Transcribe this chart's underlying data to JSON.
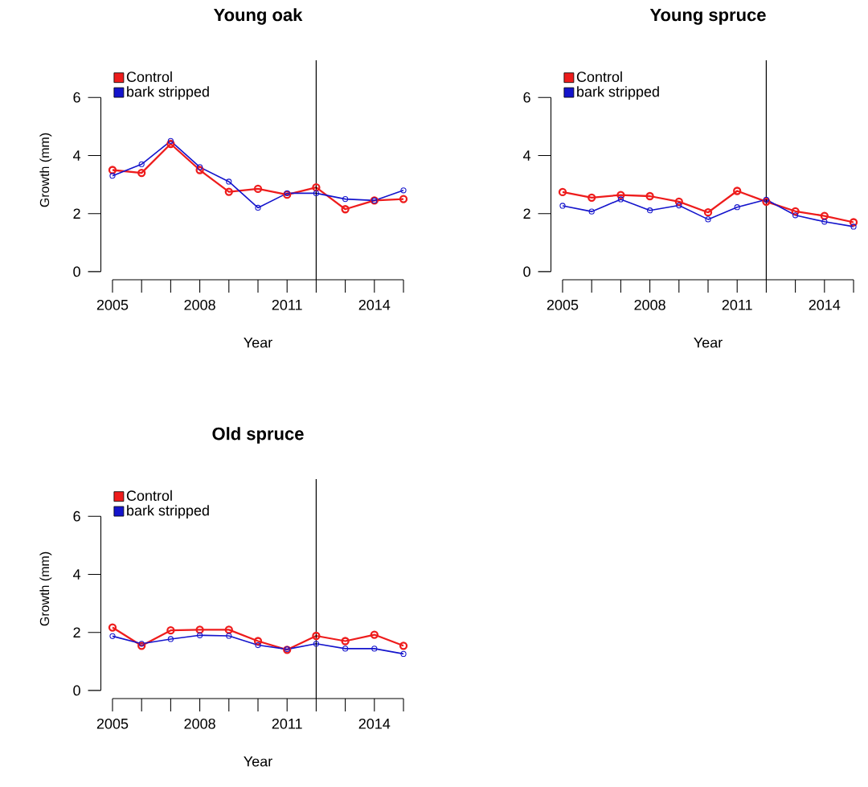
{
  "chart_data": [
    {
      "type": "line",
      "title": "Young oak",
      "xlabel": "Year",
      "ylabel": "Growth (mm)",
      "x": [
        2005,
        2006,
        2007,
        2008,
        2009,
        2010,
        2011,
        2012,
        2013,
        2014,
        2015
      ],
      "xlim": [
        2005,
        2015
      ],
      "xticks": [
        2005,
        {
          "value": 2006,
          "label": null
        },
        {
          "value": 2007,
          "label": null
        },
        2008,
        {
          "value": 2009,
          "label": null
        },
        {
          "value": 2010,
          "label": null
        },
        2011,
        {
          "value": 2012,
          "label": null
        },
        {
          "value": 2013,
          "label": null
        },
        2014,
        {
          "value": 2015,
          "label": null
        }
      ],
      "ylim": [
        -0.28,
        7.28
      ],
      "yticks": [
        0,
        2,
        4,
        6
      ],
      "legend": "top left",
      "marker": "circle",
      "series": [
        {
          "name": "Control",
          "color": "#ee1c1c",
          "values": [
            3.5,
            3.4,
            4.4,
            3.5,
            2.75,
            2.85,
            2.65,
            2.9,
            2.15,
            2.45,
            2.5
          ]
        },
        {
          "name": "bark stripped",
          "color": "#1414cc",
          "values": [
            3.3,
            3.7,
            4.5,
            3.6,
            3.1,
            2.2,
            2.7,
            2.7,
            2.5,
            2.45,
            2.8
          ]
        }
      ],
      "ref_lines": [
        {
          "axis": "x",
          "value": 2012,
          "color": "#000000"
        }
      ]
    },
    {
      "type": "line",
      "title": "Young spruce",
      "xlabel": "Year",
      "x": [
        2005,
        2006,
        2007,
        2008,
        2009,
        2010,
        2011,
        2012,
        2013,
        2014,
        2015
      ],
      "xlim": [
        2005,
        2015
      ],
      "xticks": [
        2005,
        {
          "value": 2006,
          "label": null
        },
        {
          "value": 2007,
          "label": null
        },
        2008,
        {
          "value": 2009,
          "label": null
        },
        {
          "value": 2010,
          "label": null
        },
        2011,
        {
          "value": 2012,
          "label": null
        },
        {
          "value": 2013,
          "label": null
        },
        2014,
        {
          "value": 2015,
          "label": null
        }
      ],
      "ylim": [
        -0.28,
        7.28
      ],
      "yticks": [
        0,
        2,
        4,
        6
      ],
      "legend": "top left",
      "marker": "circle",
      "series": [
        {
          "name": "Control",
          "color": "#ee1c1c",
          "values": [
            2.74,
            2.55,
            2.64,
            2.6,
            2.41,
            2.04,
            2.78,
            2.41,
            2.08,
            1.92,
            1.7
          ]
        },
        {
          "name": "bark stripped",
          "color": "#1414cc",
          "values": [
            2.27,
            2.07,
            2.49,
            2.11,
            2.28,
            1.8,
            2.22,
            2.48,
            1.94,
            1.72,
            1.55
          ]
        }
      ],
      "ref_lines": [
        {
          "axis": "x",
          "value": 2012,
          "color": "#000000"
        }
      ]
    },
    {
      "type": "line",
      "title": "Old spruce",
      "xlabel": "Year",
      "ylabel": "Growth (mm)",
      "x": [
        2005,
        2006,
        2007,
        2008,
        2009,
        2010,
        2011,
        2012,
        2013,
        2014,
        2015
      ],
      "xlim": [
        2005,
        2015
      ],
      "xticks": [
        2005,
        {
          "value": 2006,
          "label": null
        },
        {
          "value": 2007,
          "label": null
        },
        2008,
        {
          "value": 2009,
          "label": null
        },
        {
          "value": 2010,
          "label": null
        },
        2011,
        {
          "value": 2012,
          "label": null
        },
        {
          "value": 2013,
          "label": null
        },
        2014,
        {
          "value": 2015,
          "label": null
        }
      ],
      "ylim": [
        -0.28,
        7.28
      ],
      "yticks": [
        0,
        2,
        4,
        6
      ],
      "legend": "top left",
      "marker": "circle",
      "series": [
        {
          "name": "Control",
          "color": "#ee1c1c",
          "values": [
            2.17,
            1.54,
            2.07,
            2.09,
            2.09,
            1.7,
            1.4,
            1.88,
            1.7,
            1.92,
            1.54
          ]
        },
        {
          "name": "bark stripped",
          "color": "#1414cc",
          "values": [
            1.87,
            1.61,
            1.77,
            1.9,
            1.88,
            1.56,
            1.42,
            1.61,
            1.44,
            1.44,
            1.26
          ]
        }
      ],
      "ref_lines": [
        {
          "axis": "x",
          "value": 2012,
          "color": "#000000"
        }
      ]
    }
  ]
}
